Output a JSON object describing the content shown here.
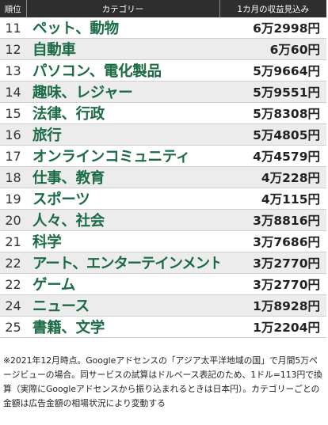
{
  "table": {
    "headers": {
      "rank": "順位",
      "category": "カテゴリー",
      "revenue": "1カ月の収益見込み"
    },
    "rows": [
      {
        "rank": "11",
        "category": "ペット、動物",
        "revenue": "6万2998円"
      },
      {
        "rank": "12",
        "category": "自動車",
        "revenue": "6万60円"
      },
      {
        "rank": "13",
        "category": "パソコン、電化製品",
        "revenue": "5万9664円"
      },
      {
        "rank": "14",
        "category": "趣味、レジャー",
        "revenue": "5万9551円"
      },
      {
        "rank": "15",
        "category": "法律、行政",
        "revenue": "5万8308円"
      },
      {
        "rank": "16",
        "category": "旅行",
        "revenue": "5万4805円"
      },
      {
        "rank": "17",
        "category": "オンラインコミュニティ",
        "revenue": "4万4579円"
      },
      {
        "rank": "18",
        "category": "仕事、教育",
        "revenue": "4万228円"
      },
      {
        "rank": "19",
        "category": "スポーツ",
        "revenue": "4万115円"
      },
      {
        "rank": "20",
        "category": "人々、社会",
        "revenue": "3万8816円"
      },
      {
        "rank": "21",
        "category": "科学",
        "revenue": "3万7686円"
      },
      {
        "rank": "22",
        "category": "アート、エンターテインメント",
        "revenue": "3万2770円"
      },
      {
        "rank": "22",
        "category": "ゲーム",
        "revenue": "3万2770円"
      },
      {
        "rank": "24",
        "category": "ニュース",
        "revenue": "1万8928円"
      },
      {
        "rank": "25",
        "category": "書籍、文学",
        "revenue": "1万2204円"
      }
    ]
  },
  "footnote": "※2021年12月時点。Googleアドセンスの「アジア太平洋地域の国」で月間5万ページビューの場合。同サービスの試算はドルベース表記のため、1ドル=113円で換算（実際にGoogleアドセンスから振り込まれるときは日本円）。カテゴリーごとの金額は広告金額の相場状況により変動する",
  "colors": {
    "header_bg": "#2e2e2e",
    "category_text": "#1b6b45",
    "stripe_bg": "#ececec"
  }
}
